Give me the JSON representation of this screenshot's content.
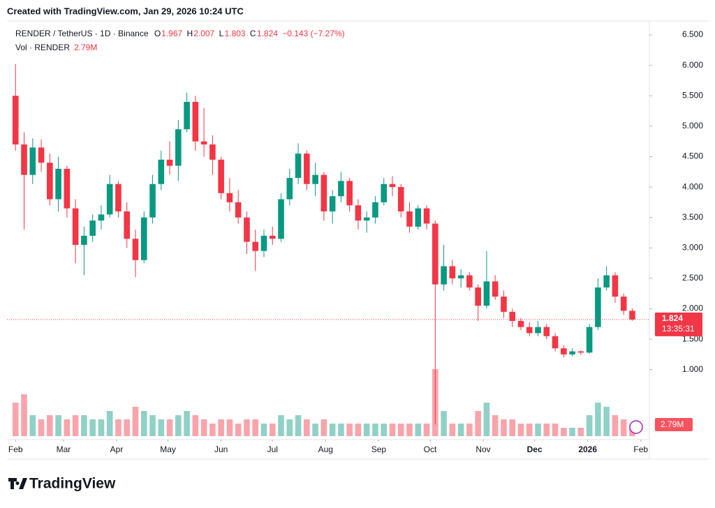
{
  "header": {
    "created": "Created with TradingView.com, Jan 29, 2026 10:24 UTC"
  },
  "legend": {
    "symbol": "RENDER / TetherUS · 1D · Binance",
    "ohlc": [
      {
        "key": "O",
        "value": "1.967"
      },
      {
        "key": "H",
        "value": "2.007"
      },
      {
        "key": "L",
        "value": "1.803"
      },
      {
        "key": "C",
        "value": "1.824"
      }
    ],
    "change": "−0.143 (−7.27%)",
    "volume_title": "Vol · RENDER",
    "volume": "2.79M"
  },
  "chart_data": {
    "type": "candlestick",
    "x": [
      0,
      5,
      10,
      15,
      20,
      25,
      30,
      35,
      40,
      45,
      50,
      55,
      60,
      65,
      70,
      75,
      80,
      85,
      90,
      95,
      100,
      105,
      110,
      115,
      120,
      125,
      130,
      135,
      140,
      145,
      150,
      155,
      160,
      165,
      170,
      175,
      180,
      185,
      190,
      195,
      200,
      205,
      210,
      215,
      220,
      225,
      230,
      235,
      240,
      245,
      250,
      255,
      260,
      265,
      270,
      275,
      280,
      285,
      290,
      295,
      300,
      305,
      310,
      315,
      320,
      325,
      330,
      335,
      340,
      345,
      350,
      355,
      360
    ],
    "open": [
      5.5,
      4.7,
      4.2,
      4.65,
      4.4,
      3.8,
      4.3,
      3.65,
      3.05,
      3.2,
      3.45,
      3.55,
      4.05,
      3.6,
      3.15,
      2.8,
      3.5,
      4.05,
      4.45,
      4.35,
      4.95,
      5.4,
      4.75,
      4.7,
      4.45,
      3.9,
      3.75,
      3.5,
      3.1,
      2.95,
      3.2,
      3.15,
      3.8,
      4.15,
      4.55,
      4.05,
      4.2,
      3.6,
      3.85,
      4.1,
      3.7,
      3.45,
      3.5,
      3.75,
      4.05,
      4.0,
      3.6,
      3.35,
      3.65,
      3.4,
      2.4,
      2.7,
      2.5,
      2.55,
      2.35,
      2.05,
      2.45,
      2.2,
      1.95,
      1.8,
      1.7,
      1.6,
      1.7,
      1.55,
      1.35,
      1.25,
      1.3,
      1.28,
      1.7,
      2.35,
      2.55,
      2.2,
      1.967
    ],
    "high": [
      6.02,
      4.9,
      4.8,
      4.78,
      4.55,
      4.5,
      4.35,
      3.8,
      3.35,
      3.55,
      3.7,
      4.2,
      4.1,
      3.75,
      3.3,
      3.6,
      4.2,
      4.6,
      4.75,
      5.1,
      5.55,
      5.5,
      5.3,
      4.85,
      4.5,
      4.15,
      3.95,
      3.6,
      3.3,
      3.3,
      3.35,
      3.9,
      4.3,
      4.72,
      4.6,
      4.4,
      4.25,
      3.95,
      4.25,
      4.15,
      3.8,
      3.6,
      3.85,
      4.15,
      4.18,
      4.05,
      3.75,
      3.7,
      3.7,
      3.45,
      3.05,
      2.8,
      2.65,
      2.6,
      2.4,
      2.95,
      2.55,
      2.3,
      2.0,
      1.85,
      1.78,
      1.8,
      1.75,
      1.6,
      1.4,
      1.35,
      1.32,
      1.75,
      2.5,
      2.7,
      2.6,
      2.25,
      2.007
    ],
    "low": [
      4.6,
      3.3,
      4.05,
      4.25,
      3.7,
      3.6,
      3.5,
      2.75,
      2.55,
      3.1,
      3.3,
      3.5,
      3.5,
      3.0,
      2.52,
      2.75,
      3.4,
      3.95,
      4.2,
      4.1,
      4.9,
      4.6,
      4.5,
      4.2,
      3.8,
      3.6,
      3.4,
      2.9,
      2.62,
      2.85,
      3.05,
      3.1,
      3.7,
      4.05,
      3.95,
      3.85,
      3.45,
      3.4,
      3.75,
      3.6,
      3.3,
      3.25,
      3.4,
      3.7,
      3.85,
      3.5,
      3.25,
      3.3,
      3.3,
      0.1,
      2.3,
      2.4,
      2.35,
      2.3,
      1.8,
      2.0,
      2.15,
      1.85,
      1.7,
      1.65,
      1.55,
      1.55,
      1.5,
      1.3,
      1.2,
      1.22,
      1.24,
      1.26,
      1.65,
      2.3,
      2.1,
      1.9,
      1.803
    ],
    "close": [
      4.7,
      4.2,
      4.65,
      4.4,
      3.8,
      4.3,
      3.65,
      3.05,
      3.2,
      3.45,
      3.55,
      4.05,
      3.6,
      3.15,
      2.8,
      3.5,
      4.05,
      4.45,
      4.35,
      4.95,
      5.4,
      4.75,
      4.7,
      4.45,
      3.9,
      3.75,
      3.5,
      3.1,
      2.95,
      3.2,
      3.15,
      3.8,
      4.15,
      4.55,
      4.05,
      4.2,
      3.6,
      3.85,
      4.1,
      3.7,
      3.45,
      3.5,
      3.75,
      4.05,
      4.0,
      3.6,
      3.35,
      3.65,
      3.4,
      2.4,
      2.7,
      2.5,
      2.55,
      2.35,
      2.05,
      2.45,
      2.2,
      1.95,
      1.8,
      1.7,
      1.6,
      1.7,
      1.55,
      1.35,
      1.25,
      1.3,
      1.28,
      1.7,
      2.35,
      2.55,
      2.2,
      1.967,
      1.824
    ],
    "volume": [
      8,
      10,
      5,
      4,
      5,
      5,
      4,
      5,
      5,
      4,
      4,
      6,
      4,
      4,
      7,
      6,
      5,
      4,
      4,
      5,
      6,
      5,
      4,
      3,
      4,
      4,
      3,
      4,
      4,
      3,
      3,
      5,
      4,
      5,
      4,
      3,
      4,
      3,
      3,
      3,
      3,
      3,
      3,
      3,
      3,
      3,
      3,
      3,
      3,
      16,
      6,
      3,
      3,
      3,
      6,
      8,
      5,
      4,
      4,
      3,
      3,
      3,
      3,
      3,
      2,
      2,
      2,
      5,
      8,
      7,
      5,
      4,
      2.79
    ],
    "volume_label": "2.79M",
    "up_color": "#089981",
    "down_color": "#f23645",
    "xlim": [
      -5,
      370
    ],
    "xticks": [
      {
        "value": 0,
        "label": "Feb"
      },
      {
        "value": 28,
        "label": "Mar"
      },
      {
        "value": 59,
        "label": "Apr"
      },
      {
        "value": 89,
        "label": "May"
      },
      {
        "value": 120,
        "label": "Jun"
      },
      {
        "value": 150,
        "label": "Jul"
      },
      {
        "value": 181,
        "label": "Aug"
      },
      {
        "value": 212,
        "label": "Sep"
      },
      {
        "value": 242,
        "label": "Oct"
      },
      {
        "value": 273,
        "label": "Nov"
      },
      {
        "value": 303,
        "label": "Dec"
      },
      {
        "value": 334,
        "label": "2026"
      },
      {
        "value": 365,
        "label": "Feb"
      }
    ],
    "ylim": [
      -0.15,
      6.73
    ],
    "yticks": [
      {
        "value": 1,
        "label": "1.000"
      },
      {
        "value": 1.5,
        "label": "1.500"
      },
      {
        "value": 2,
        "label": "2.000"
      },
      {
        "value": 2.5,
        "label": "2.500"
      },
      {
        "value": 3,
        "label": "3.000"
      },
      {
        "value": 3.5,
        "label": "3.500"
      },
      {
        "value": 4,
        "label": "4.000"
      },
      {
        "value": 4.5,
        "label": "4.500"
      },
      {
        "value": 5,
        "label": "5.000"
      },
      {
        "value": 5.5,
        "label": "5.500"
      },
      {
        "value": 6,
        "label": "6.000"
      },
      {
        "value": 6.5,
        "label": "6.500"
      }
    ],
    "vol_ylim": [
      0,
      20
    ],
    "last_price": 1.824,
    "countdown": "13:35:31"
  }
}
